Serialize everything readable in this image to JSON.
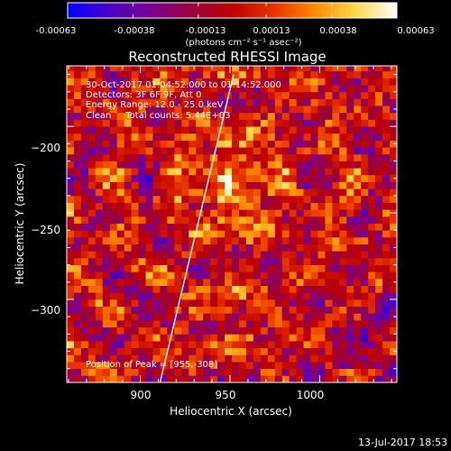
{
  "colorbar": {
    "tick_labels": [
      "-0.00063",
      "-0.00038",
      "-0.00013",
      "0.00013",
      "0.00038",
      "0.00063"
    ],
    "tick_values": [
      -0.00063,
      -0.00038,
      -0.00013,
      0.00013,
      0.00038,
      0.00063
    ],
    "range": [
      -0.00063,
      0.00063
    ],
    "unit_label": "(photons cm⁻² s⁻¹ asec⁻²)",
    "colors": [
      "#0000ff",
      "#4a00c8",
      "#7a0090",
      "#9a0040",
      "#c00000",
      "#e83200",
      "#ff8a00",
      "#ffd84a",
      "#ffffff"
    ]
  },
  "chart_data": {
    "type": "heatmap",
    "title": "Reconstructed RHESSI Image",
    "xlabel": "Heliocentric X (arcsec)",
    "ylabel": "Heliocentric Y (arcsec)",
    "xlim": [
      859,
      1043
    ],
    "ylim": [
      -348,
      -165
    ],
    "x_ticks": [
      900,
      950,
      1000
    ],
    "x_tick_labels": [
      "900",
      "950",
      "1000"
    ],
    "y_ticks": [
      -200,
      -250,
      -300
    ],
    "y_tick_labels": [
      "−200",
      "−250",
      "−300"
    ],
    "grid": false,
    "peak": {
      "x": 955,
      "y": -308
    },
    "bright_source": {
      "x": 950,
      "y": -232
    },
    "limb_line": [
      [
        911,
        -348
      ],
      [
        952,
        -170
      ]
    ],
    "pixel_size_arcsec": 4
  },
  "annotations": {
    "line1": "30-Oct-2017 01:04:52.000 to 01:14:52.000",
    "line2": "Detectors: 3F 6F 9F, Att 0",
    "line3": "Energy Range: 12.0 - 25.0 keV",
    "line4": "Clean     Total counts: 5.44E+03",
    "peak_text": "Position of Peak = [955,-308]"
  },
  "footer": {
    "timestamp": "13-Jul-2017 18:53"
  }
}
